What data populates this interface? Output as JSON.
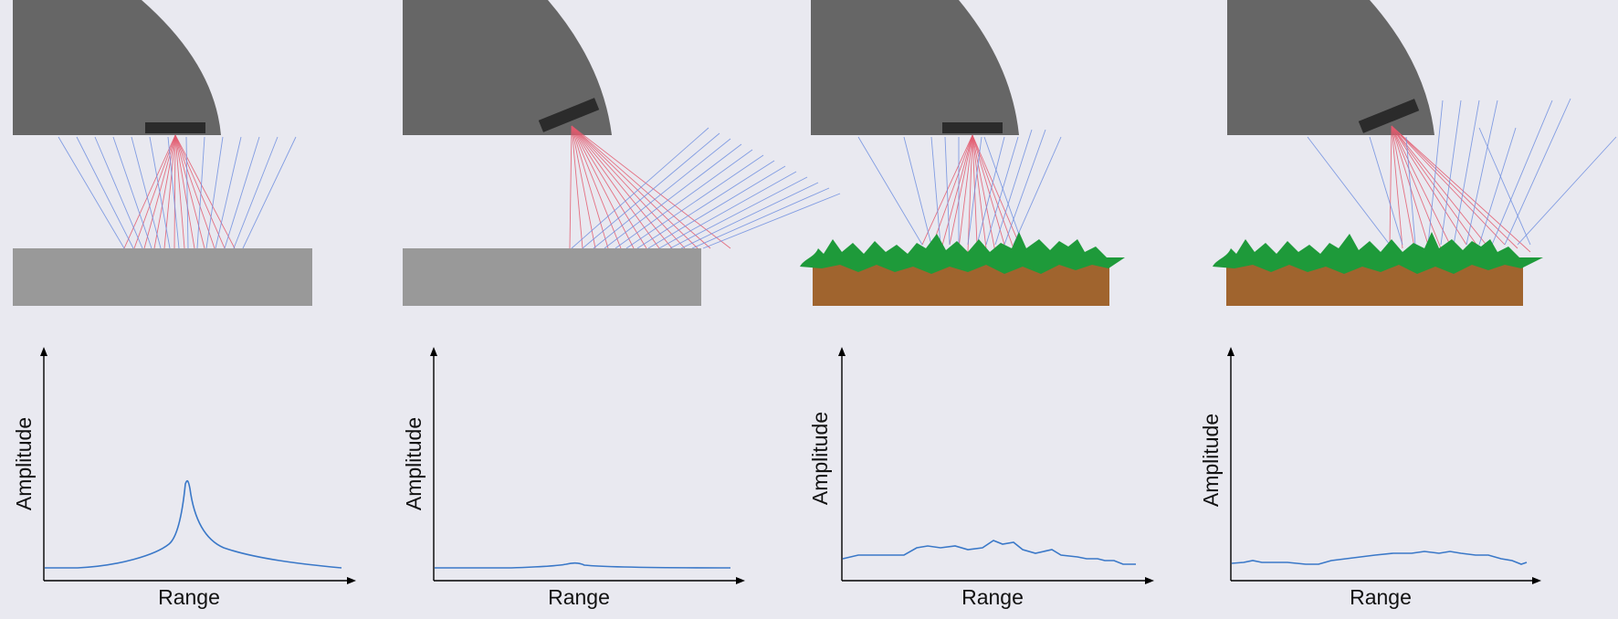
{
  "colors": {
    "background": "#e9e9f0",
    "sonar_head": "#666666",
    "transducer": "#2b2b2b",
    "flat_surface": "#999999",
    "soil": "#a0642e",
    "vegetation": "#1e9a3a",
    "incident_beam": "#e35a6e",
    "reflected_beam": "#6f8fe0",
    "echo_curve": "#3a78c8",
    "axis": "#000000"
  },
  "panels": [
    {
      "id": "flat-level",
      "surface": "flat",
      "transducer": "level",
      "echo_profile": "sharp-peak",
      "plot": {
        "ylabel": "Amplitude",
        "xlabel": "Range"
      }
    },
    {
      "id": "flat-tilted",
      "surface": "flat",
      "transducer": "tilted",
      "echo_profile": "weak-flat",
      "plot": {
        "ylabel": "Amplitude",
        "xlabel": "Range"
      }
    },
    {
      "id": "vegetation-level",
      "surface": "vegetated",
      "transducer": "level",
      "echo_profile": "diffuse",
      "plot": {
        "ylabel": "Amplitude",
        "xlabel": "Range"
      }
    },
    {
      "id": "vegetation-tilted",
      "surface": "vegetated",
      "transducer": "tilted",
      "echo_profile": "diffuse-low",
      "plot": {
        "ylabel": "Amplitude",
        "xlabel": "Range"
      }
    }
  ]
}
